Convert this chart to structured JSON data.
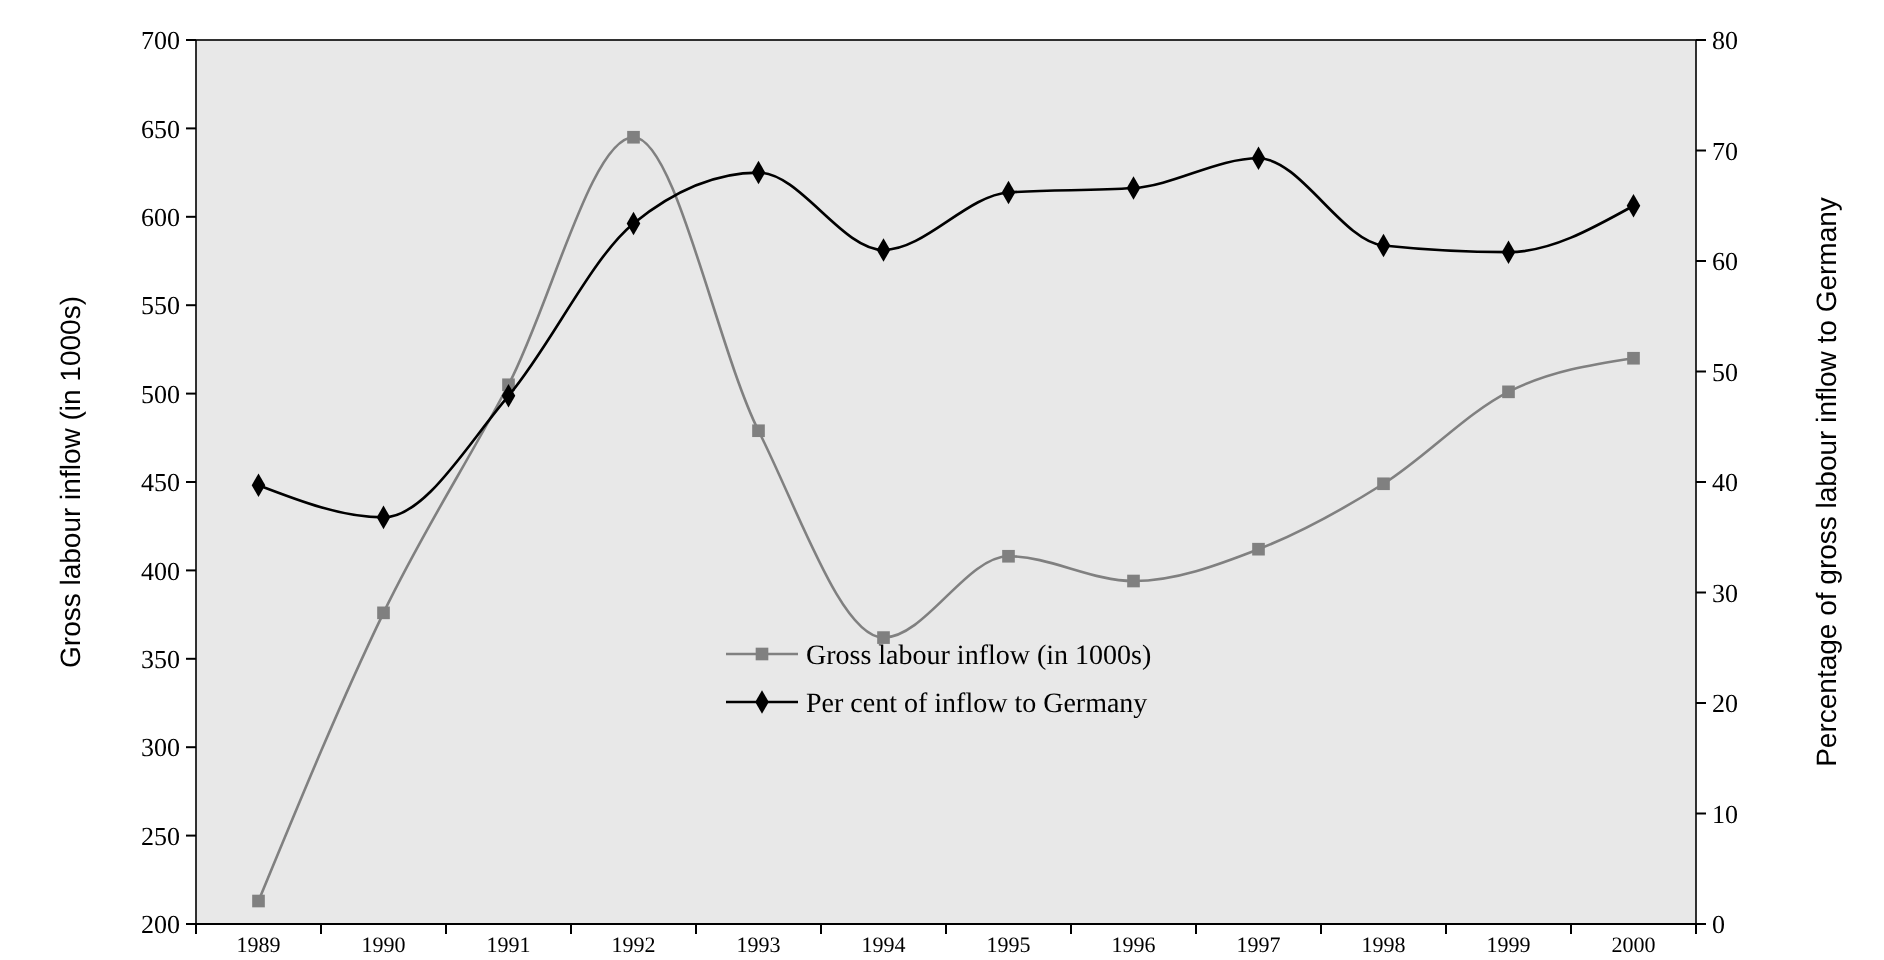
{
  "chart_data": {
    "type": "line",
    "categories": [
      "1989",
      "1990",
      "1991",
      "1992",
      "1993",
      "1994",
      "1995",
      "1996",
      "1997",
      "1998",
      "1999",
      "2000"
    ],
    "ylabel": "Gross labour inflow (in 1000s)",
    "y2label": "Percentage of gross labour inflow to Germany",
    "ylim": [
      200,
      700
    ],
    "yticks": [
      200,
      250,
      300,
      350,
      400,
      450,
      500,
      550,
      600,
      650,
      700
    ],
    "y2lim": [
      0,
      80
    ],
    "y2ticks": [
      0,
      10,
      20,
      30,
      40,
      50,
      60,
      70,
      80
    ],
    "grid": false,
    "legend": "bottom",
    "line_style": "solid",
    "series": [
      {
        "name": "Gross labour inflow (in 1000s)",
        "color": "#808080",
        "marker": "square",
        "values": [
          213,
          376,
          505,
          645,
          479,
          362,
          408,
          394,
          412,
          449,
          501,
          520
        ]
      },
      {
        "name": "Per cent of inflow to Germany",
        "color": "#000000",
        "marker": "diamond",
        "axis": "y2",
        "values": [
          39.7,
          36.8,
          47.8,
          63.4,
          68,
          61,
          66.2,
          66.6,
          69.3,
          61.4,
          60.8,
          65
        ]
      }
    ]
  }
}
